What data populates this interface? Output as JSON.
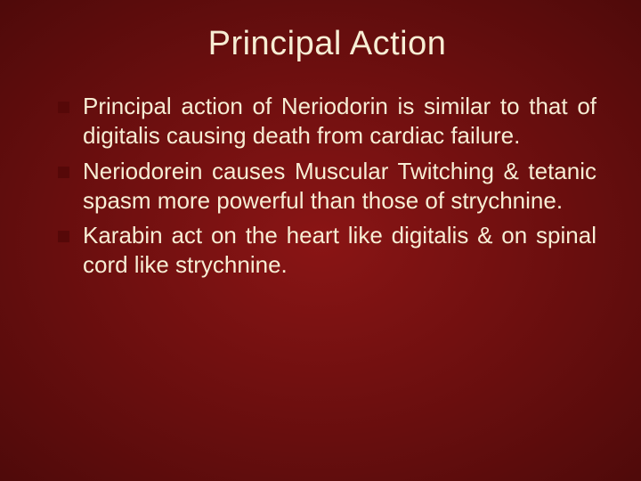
{
  "slide": {
    "title": "Principal Action",
    "title_color": "#f7edd4",
    "title_fontsize": 38,
    "background_gradient": [
      "#8a1515",
      "#6d0f0f",
      "#4f0a0a"
    ],
    "bullet_marker_color": "#560808",
    "bullet_marker_shape": "square",
    "text_color": "#f7edd4",
    "body_fontsize": 26,
    "bullets": [
      "Principal action of Neriodorin is similar to that of digitalis causing death from cardiac failure.",
      "Neriodorein causes Muscular Twitching & tetanic spasm more powerful than those of strychnine.",
      "Karabin act on the heart like digitalis & on spinal cord like strychnine."
    ]
  }
}
